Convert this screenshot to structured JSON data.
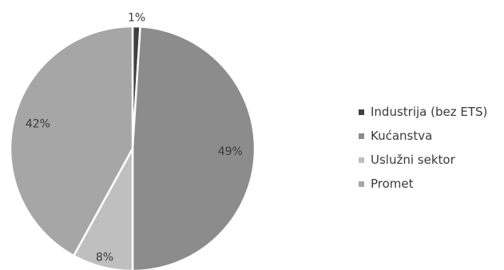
{
  "chart_data": {
    "type": "pie",
    "title": "",
    "categories": [
      "Industrija (bez ETS)",
      "Kućanstva",
      "Uslužni sektor",
      "Promet"
    ],
    "values": [
      1,
      49,
      8,
      42
    ],
    "data_labels": [
      "1%",
      "49%",
      "8%",
      "42%"
    ],
    "colors": [
      "#404040",
      "#8c8c8c",
      "#bfbfbf",
      "#a6a6a6"
    ],
    "legend_placement": "right"
  }
}
